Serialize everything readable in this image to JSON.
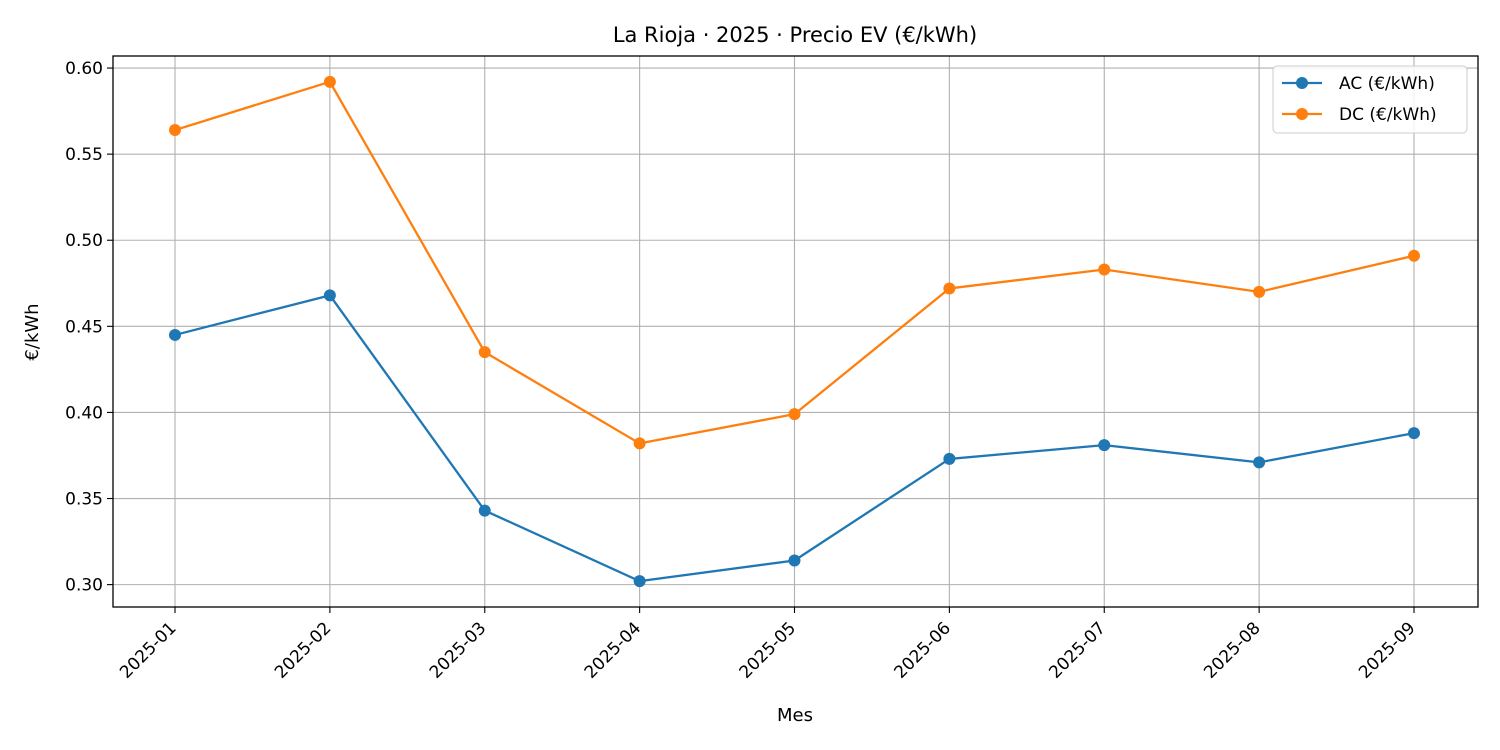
{
  "chart_data": {
    "type": "line",
    "title": "La Rioja · 2025 · Precio EV (€/kWh)",
    "xlabel": "Mes",
    "ylabel": "€/kWh",
    "categories": [
      "2025-01",
      "2025-02",
      "2025-03",
      "2025-04",
      "2025-05",
      "2025-06",
      "2025-07",
      "2025-08",
      "2025-09"
    ],
    "yticks": [
      0.3,
      0.35,
      0.4,
      0.45,
      0.5,
      0.55,
      0.6
    ],
    "ytick_labels": [
      "0.30",
      "0.35",
      "0.40",
      "0.45",
      "0.50",
      "0.55",
      "0.60"
    ],
    "ylim": [
      0.287,
      0.607
    ],
    "grid": true,
    "legend_position": "top-right",
    "series": [
      {
        "name": "AC (€/kWh)",
        "color": "#1f77b4",
        "values": [
          0.445,
          0.468,
          0.343,
          0.302,
          0.314,
          0.373,
          0.381,
          0.371,
          0.388
        ]
      },
      {
        "name": "DC (€/kWh)",
        "color": "#ff7f0e",
        "values": [
          0.564,
          0.592,
          0.435,
          0.382,
          0.399,
          0.472,
          0.483,
          0.47,
          0.491
        ]
      }
    ]
  }
}
